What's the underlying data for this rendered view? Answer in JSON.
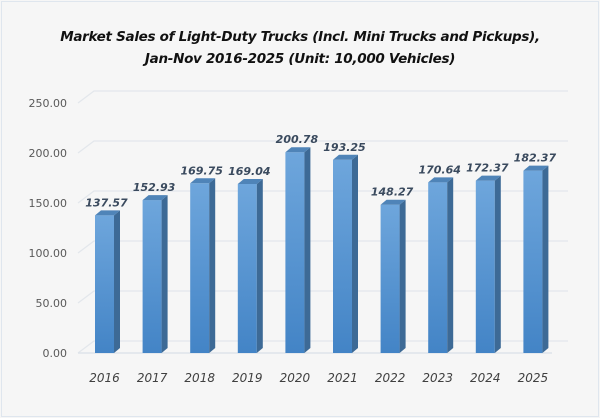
{
  "chart_data": {
    "type": "bar",
    "title_line1": "Market Sales of Light-Duty Trucks (Incl. Mini Trucks and Pickups),",
    "title_line2": "Jan-Nov 2016-2025 (Unit: 10,000 Vehicles)",
    "categories": [
      "2016",
      "2017",
      "2018",
      "2019",
      "2020",
      "2021",
      "2022",
      "2023",
      "2024",
      "2025"
    ],
    "values": [
      137.57,
      152.93,
      169.75,
      169.04,
      200.78,
      193.25,
      148.27,
      170.64,
      172.37,
      182.37
    ],
    "value_labels": [
      "137.57",
      "152.93",
      "169.75",
      "169.04",
      "200.78",
      "193.25",
      "148.27",
      "170.64",
      "172.37",
      "182.37"
    ],
    "yticks": [
      "0.00",
      "50.00",
      "100.00",
      "150.00",
      "200.00",
      "250.00"
    ],
    "ytick_values": [
      0,
      50,
      100,
      150,
      200,
      250
    ],
    "xlabel": "",
    "ylabel": "",
    "ylim": [
      0,
      250
    ],
    "grid": true,
    "legend": "none",
    "colors": {
      "bar_front": "#5b9bd5",
      "bar_side": "#3d6a96",
      "bar_top": "#4f84b8",
      "grid": "#e3e7ec"
    }
  }
}
